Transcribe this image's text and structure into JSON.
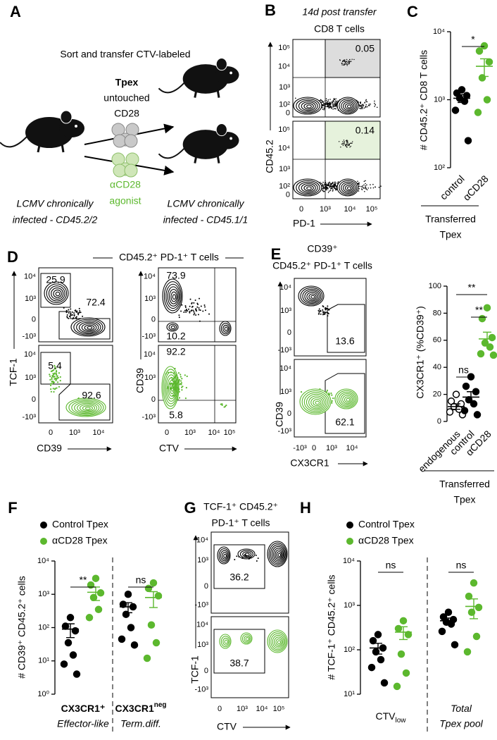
{
  "panel_letters": [
    "A",
    "B",
    "C",
    "D",
    "E",
    "F",
    "G",
    "H"
  ],
  "panel_a": {
    "heading": "Sort and transfer CTV-labeled",
    "cell_type": "Tpex",
    "untouched": [
      "untouched",
      "CD28"
    ],
    "agonist": [
      "αCD28",
      "agonist"
    ],
    "donor": [
      "LCMV chronically",
      "infected - CD45.2/2"
    ],
    "recipient": [
      "LCMV chronically",
      "infected - CD45.1/1"
    ]
  },
  "panel_b": {
    "title": [
      "14d post transfer",
      "CD8 T cells"
    ],
    "ylabel": "CD45.2",
    "xlabel": "PD-1",
    "yticks": [
      "10⁵",
      "10⁴",
      "10³",
      "10²",
      "0"
    ],
    "xticks": [
      "0",
      "10³",
      "10⁴",
      "10⁵"
    ],
    "gates": [
      "0.05",
      "0.14"
    ]
  },
  "panel_d": {
    "title": "CD45.2⁺ PD-1⁺ T cells",
    "left": {
      "ylabel": "TCF-1",
      "xlabel": "CD39",
      "yticks": [
        "10⁴",
        "10³",
        "0",
        "-10³"
      ],
      "xticks": [
        "0",
        "10³",
        "10⁴"
      ],
      "gates": [
        [
          "25.9",
          "72.4"
        ],
        [
          "5.4",
          "92.6"
        ]
      ]
    },
    "right": {
      "ylabel": "CD39",
      "xlabel": "CTV",
      "yticks": [
        "10⁴",
        "10³",
        "0",
        "-10³"
      ],
      "xticks": [
        "0",
        "10³",
        "10⁴",
        "10⁵"
      ],
      "gates": [
        [
          "73.9",
          "10.2"
        ],
        [
          "92.2",
          "5.8"
        ]
      ]
    }
  },
  "panel_e": {
    "title": [
      "CD39⁺",
      "CD45.2⁺ PD-1⁺ T cells"
    ],
    "ylabel": "CD39",
    "xlabel": "CX3CR1",
    "yticks": [
      "10⁴",
      "10³",
      "0",
      "-10³"
    ],
    "xticks": [
      "-10³",
      "0",
      "10³",
      "10⁴"
    ],
    "gates": [
      "13.6",
      "62.1"
    ]
  },
  "panel_g": {
    "title": [
      "TCF-1⁺ CD45.2⁺",
      "PD-1⁺ T cells"
    ],
    "ylabel": "TCF-1",
    "xlabel": "CTV",
    "yticks": [
      "10⁴",
      "10³",
      "0",
      "-10³"
    ],
    "xticks": [
      "0",
      "10³",
      "10⁴",
      "10⁵"
    ],
    "gates": [
      "36.2",
      "38.7"
    ]
  },
  "chart_data": [
    {
      "type": "dot",
      "ylabel": "# CD45.2⁺ CD8 T cells",
      "log": true,
      "ylim": [
        100,
        10000
      ],
      "yticks": [
        {
          "value": 100,
          "label": "10²"
        },
        {
          "value": 1000,
          "label": "10³"
        },
        {
          "value": 10000,
          "label": "10⁴"
        }
      ],
      "categories": [
        "control",
        "αCD28"
      ],
      "colors": [
        "#000000",
        "#5cb82e"
      ],
      "values": [
        [
          1400,
          1250,
          1150,
          1050,
          950,
          700,
          250
        ],
        [
          6200,
          5200,
          3600,
          2100,
          1000,
          650
        ]
      ],
      "mean": [
        1050,
        3100
      ],
      "sem": [
        140,
        900
      ],
      "significance": [
        "*"
      ],
      "group_label": [
        "Transferred",
        "Tpex"
      ]
    },
    {
      "type": "dot",
      "ylabel": "CX3CR1⁺ (%CD39⁺)",
      "log": false,
      "ylim": [
        0,
        100
      ],
      "yticks": [
        0,
        20,
        40,
        60,
        80,
        100
      ],
      "categories": [
        "endogenous",
        "control",
        "αCD28"
      ],
      "colors": [
        "#000000",
        "#000000",
        "#5cb82e"
      ],
      "markers": [
        "open",
        "filled",
        "filled"
      ],
      "values": [
        [
          20,
          15,
          13,
          11,
          9,
          7,
          5
        ],
        [
          33,
          26,
          22,
          16,
          13,
          8,
          5
        ],
        [
          84,
          76,
          62,
          58,
          55,
          50,
          49
        ]
      ],
      "mean": [
        11,
        18,
        61
      ],
      "sem": [
        2,
        4,
        5
      ],
      "significance": [
        "**",
        "ns",
        "**"
      ],
      "group_label": [
        "Transferred",
        "Tpex"
      ]
    },
    {
      "type": "dot",
      "ylabel": "# CD39⁺ CD45.2⁺ cells",
      "log": true,
      "ylim": [
        1,
        10000
      ],
      "yticks": [
        {
          "value": 1,
          "label": "10⁰"
        },
        {
          "value": 10,
          "label": "10¹"
        },
        {
          "value": 100,
          "label": "10²"
        },
        {
          "value": 1000,
          "label": "10³"
        },
        {
          "value": 10000,
          "label": "10⁴"
        }
      ],
      "categories": [
        {
          "name": "CX3CR1⁺",
          "note": "Effector-like"
        },
        {
          "name": "CX3CR1",
          "sup": "neg",
          "note": "Term.diff."
        }
      ],
      "series": [
        {
          "name": "Control Tpex",
          "color": "#000000",
          "values": [
            [
              200,
              110,
              80,
              35,
              15,
              8,
              4
            ],
            [
              1000,
              500,
              420,
              250,
              100,
              45,
              30
            ]
          ],
          "mean": [
            90,
            420
          ],
          "sem": [
            40,
            140
          ]
        },
        {
          "name": "αCD28 Tpex",
          "color": "#5cb82e",
          "values": [
            [
              3000,
              1900,
              1100,
              800,
              350,
              200
            ],
            [
              2200,
              1500,
              900,
              120,
              35,
              12
            ]
          ],
          "mean": [
            1150,
            800
          ],
          "sem": [
            500,
            400
          ]
        }
      ],
      "significance": [
        "**",
        "ns"
      ]
    },
    {
      "type": "dot",
      "ylabel": "# TCF-1⁺ CD45.2⁺ cells",
      "log": true,
      "ylim": [
        10,
        10000
      ],
      "yticks": [
        {
          "value": 10,
          "label": "10¹"
        },
        {
          "value": 100,
          "label": "10²"
        },
        {
          "value": 1000,
          "label": "10³"
        },
        {
          "value": 10000,
          "label": "10⁴"
        }
      ],
      "categories": [
        {
          "name": "CTV",
          "sub": "low"
        },
        {
          "name": "Total",
          "note": "Tpex pool"
        }
      ],
      "series": [
        {
          "name": "Control Tpex",
          "color": "#000000",
          "values": [
            [
              220,
              160,
              110,
              90,
              60,
              40,
              18
            ],
            [
              700,
              550,
              480,
              420,
              380,
              260,
              130
            ]
          ],
          "mean": [
            110,
            450
          ],
          "sem": [
            30,
            70
          ]
        },
        {
          "name": "αCD28 Tpex",
          "color": "#5cb82e",
          "values": [
            [
              450,
              300,
              220,
              80,
              30,
              15
            ],
            [
              3200,
              1600,
              900,
              700,
              200,
              90
            ]
          ],
          "mean": [
            250,
            950
          ],
          "sem": [
            80,
            450
          ]
        }
      ],
      "significance": [
        "ns",
        "ns"
      ]
    }
  ]
}
